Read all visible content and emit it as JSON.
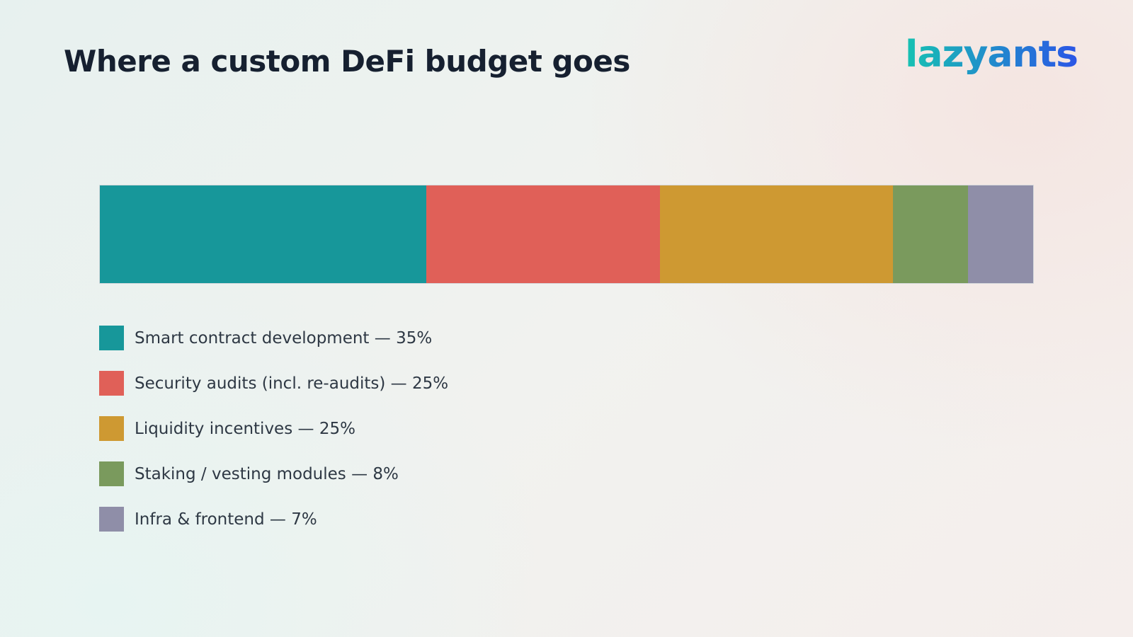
{
  "header": {
    "title": "Where a custom DeFi budget goes"
  },
  "brand": {
    "logo_text": "lazyants",
    "logo_icon": "lazyants-wordmark-logo",
    "colors": {
      "start": "#17c2b2",
      "end": "#2b55e6"
    }
  },
  "chart_data": {
    "type": "bar",
    "orientation": "horizontal",
    "stacked": true,
    "unit": "%",
    "xlim": [
      0,
      100
    ],
    "grid": false,
    "legend_position": "bottom-left",
    "categories": [
      "Smart contract development",
      "Security audits (incl. re-audits)",
      "Liquidity incentives",
      "Staking / vesting modules",
      "Infra & frontend"
    ],
    "values": [
      35,
      25,
      25,
      8,
      7
    ],
    "colors": [
      "#17979a",
      "#e06058",
      "#ce9932",
      "#7a9a5d",
      "#8f8ea8"
    ],
    "legend": [
      "Smart contract development — 35%",
      "Security audits (incl. re-audits) — 25%",
      "Liquidity incentives — 25%",
      "Staking / vesting modules — 8%",
      "Infra & frontend — 7%"
    ]
  }
}
